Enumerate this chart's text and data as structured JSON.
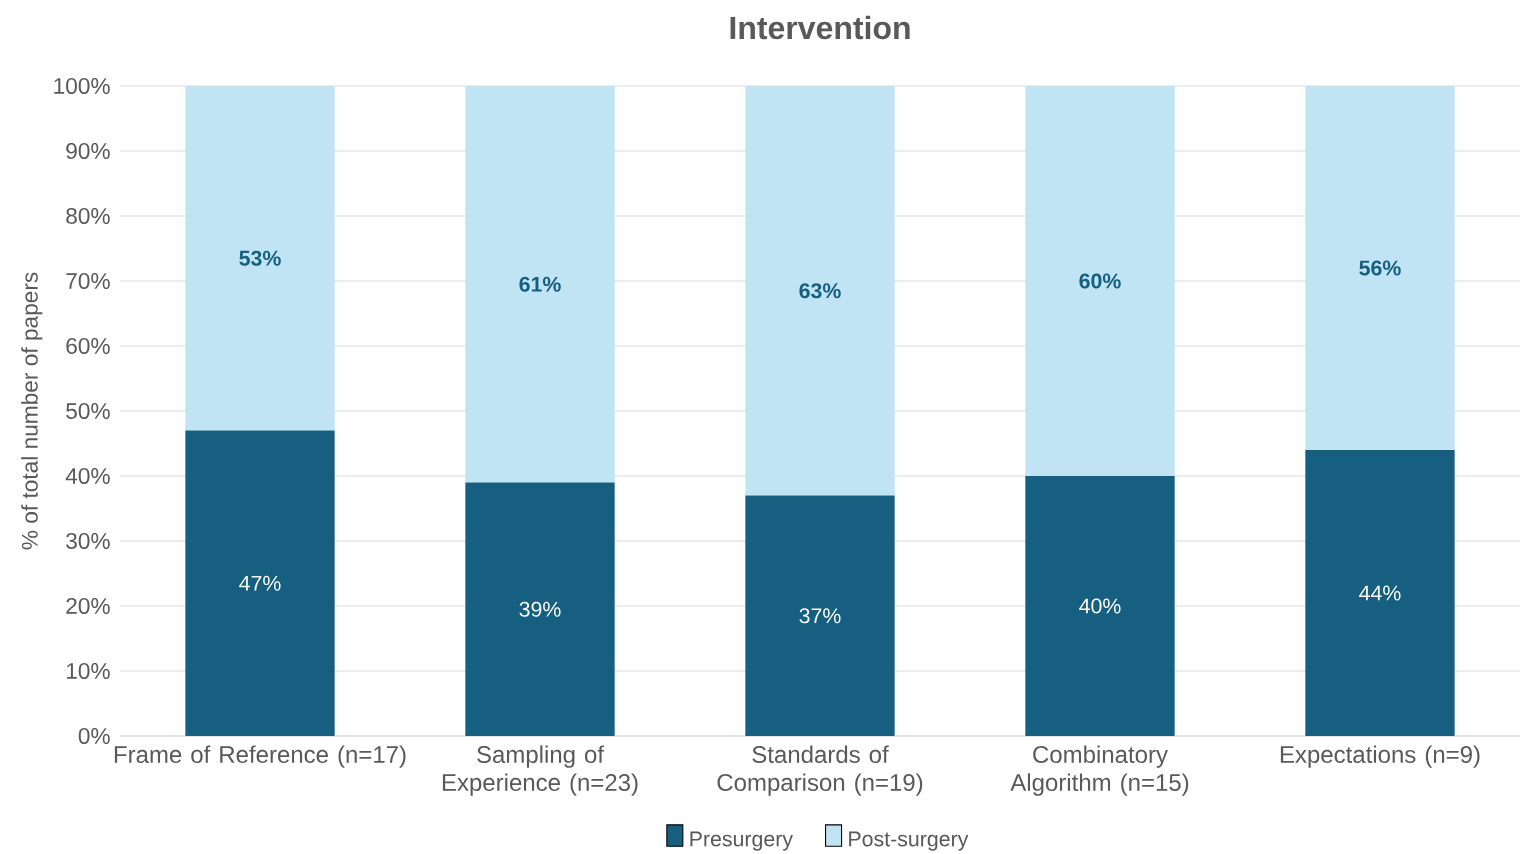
{
  "chart_data": {
    "type": "bar",
    "stacked": true,
    "title": "Intervention",
    "ylabel": "% of total number of papers",
    "categories": [
      "Frame of Reference (n=17)",
      "Sampling of Experience (n=23)",
      "Standards of Comparison (n=19)",
      "Combinatory Algorithm (n=15)",
      "Expectations (n=9)"
    ],
    "series": [
      {
        "name": "Presurgery",
        "color": "#165f80",
        "values": [
          47,
          39,
          37,
          40,
          44
        ],
        "value_labels": [
          "47%",
          "39%",
          "37%",
          "40%",
          "44%"
        ]
      },
      {
        "name": "Post-surgery",
        "color": "#c1e4f5",
        "values": [
          53,
          61,
          63,
          60,
          56
        ],
        "value_labels": [
          "53%",
          "61%",
          "63%",
          "60%",
          "56%"
        ]
      }
    ],
    "ylim": [
      0,
      100
    ],
    "yticks": [
      {
        "value": 0,
        "label": "0%"
      },
      {
        "value": 10,
        "label": "10%"
      },
      {
        "value": 20,
        "label": "20%"
      },
      {
        "value": 30,
        "label": "30%"
      },
      {
        "value": 40,
        "label": "40%"
      },
      {
        "value": 50,
        "label": "50%"
      },
      {
        "value": 60,
        "label": "60%"
      },
      {
        "value": 70,
        "label": "70%"
      },
      {
        "value": 80,
        "label": "80%"
      },
      {
        "value": 90,
        "label": "90%"
      },
      {
        "value": 100,
        "label": "100%"
      }
    ],
    "grid": "y",
    "legend": "bottom"
  }
}
